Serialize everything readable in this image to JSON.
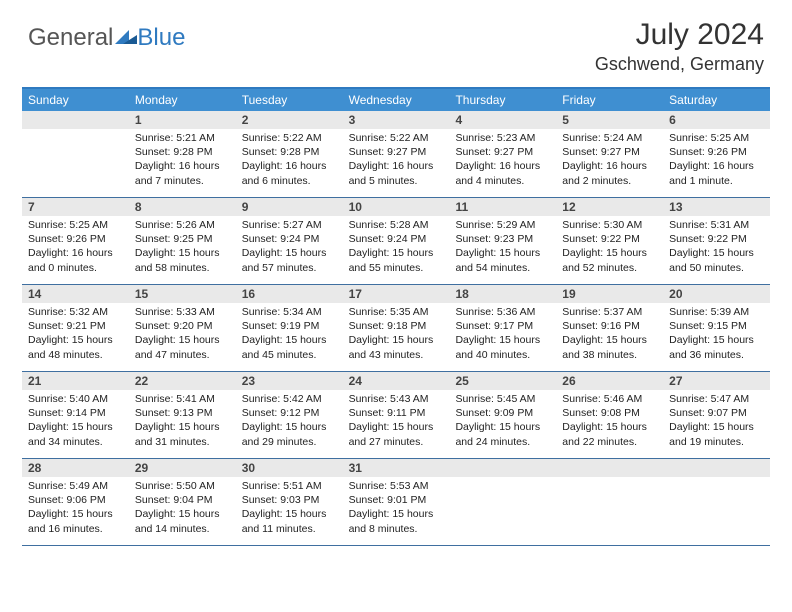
{
  "logo": {
    "part1": "General",
    "part2": "Blue"
  },
  "title": "July 2024",
  "location": "Gschwend, Germany",
  "colors": {
    "headerBlue": "#3f8fd1",
    "borderBlue": "#3f6fa0",
    "grayBar": "#e9e9e9",
    "logoBlue": "#2f7ac0"
  },
  "dayNames": [
    "Sunday",
    "Monday",
    "Tuesday",
    "Wednesday",
    "Thursday",
    "Friday",
    "Saturday"
  ],
  "weeks": [
    [
      {
        "blank": true
      },
      {
        "d": "1",
        "sr": "Sunrise: 5:21 AM",
        "ss": "Sunset: 9:28 PM",
        "dl1": "Daylight: 16 hours",
        "dl2": "and 7 minutes."
      },
      {
        "d": "2",
        "sr": "Sunrise: 5:22 AM",
        "ss": "Sunset: 9:28 PM",
        "dl1": "Daylight: 16 hours",
        "dl2": "and 6 minutes."
      },
      {
        "d": "3",
        "sr": "Sunrise: 5:22 AM",
        "ss": "Sunset: 9:27 PM",
        "dl1": "Daylight: 16 hours",
        "dl2": "and 5 minutes."
      },
      {
        "d": "4",
        "sr": "Sunrise: 5:23 AM",
        "ss": "Sunset: 9:27 PM",
        "dl1": "Daylight: 16 hours",
        "dl2": "and 4 minutes."
      },
      {
        "d": "5",
        "sr": "Sunrise: 5:24 AM",
        "ss": "Sunset: 9:27 PM",
        "dl1": "Daylight: 16 hours",
        "dl2": "and 2 minutes."
      },
      {
        "d": "6",
        "sr": "Sunrise: 5:25 AM",
        "ss": "Sunset: 9:26 PM",
        "dl1": "Daylight: 16 hours",
        "dl2": "and 1 minute."
      }
    ],
    [
      {
        "d": "7",
        "sr": "Sunrise: 5:25 AM",
        "ss": "Sunset: 9:26 PM",
        "dl1": "Daylight: 16 hours",
        "dl2": "and 0 minutes."
      },
      {
        "d": "8",
        "sr": "Sunrise: 5:26 AM",
        "ss": "Sunset: 9:25 PM",
        "dl1": "Daylight: 15 hours",
        "dl2": "and 58 minutes."
      },
      {
        "d": "9",
        "sr": "Sunrise: 5:27 AM",
        "ss": "Sunset: 9:24 PM",
        "dl1": "Daylight: 15 hours",
        "dl2": "and 57 minutes."
      },
      {
        "d": "10",
        "sr": "Sunrise: 5:28 AM",
        "ss": "Sunset: 9:24 PM",
        "dl1": "Daylight: 15 hours",
        "dl2": "and 55 minutes."
      },
      {
        "d": "11",
        "sr": "Sunrise: 5:29 AM",
        "ss": "Sunset: 9:23 PM",
        "dl1": "Daylight: 15 hours",
        "dl2": "and 54 minutes."
      },
      {
        "d": "12",
        "sr": "Sunrise: 5:30 AM",
        "ss": "Sunset: 9:22 PM",
        "dl1": "Daylight: 15 hours",
        "dl2": "and 52 minutes."
      },
      {
        "d": "13",
        "sr": "Sunrise: 5:31 AM",
        "ss": "Sunset: 9:22 PM",
        "dl1": "Daylight: 15 hours",
        "dl2": "and 50 minutes."
      }
    ],
    [
      {
        "d": "14",
        "sr": "Sunrise: 5:32 AM",
        "ss": "Sunset: 9:21 PM",
        "dl1": "Daylight: 15 hours",
        "dl2": "and 48 minutes."
      },
      {
        "d": "15",
        "sr": "Sunrise: 5:33 AM",
        "ss": "Sunset: 9:20 PM",
        "dl1": "Daylight: 15 hours",
        "dl2": "and 47 minutes."
      },
      {
        "d": "16",
        "sr": "Sunrise: 5:34 AM",
        "ss": "Sunset: 9:19 PM",
        "dl1": "Daylight: 15 hours",
        "dl2": "and 45 minutes."
      },
      {
        "d": "17",
        "sr": "Sunrise: 5:35 AM",
        "ss": "Sunset: 9:18 PM",
        "dl1": "Daylight: 15 hours",
        "dl2": "and 43 minutes."
      },
      {
        "d": "18",
        "sr": "Sunrise: 5:36 AM",
        "ss": "Sunset: 9:17 PM",
        "dl1": "Daylight: 15 hours",
        "dl2": "and 40 minutes."
      },
      {
        "d": "19",
        "sr": "Sunrise: 5:37 AM",
        "ss": "Sunset: 9:16 PM",
        "dl1": "Daylight: 15 hours",
        "dl2": "and 38 minutes."
      },
      {
        "d": "20",
        "sr": "Sunrise: 5:39 AM",
        "ss": "Sunset: 9:15 PM",
        "dl1": "Daylight: 15 hours",
        "dl2": "and 36 minutes."
      }
    ],
    [
      {
        "d": "21",
        "sr": "Sunrise: 5:40 AM",
        "ss": "Sunset: 9:14 PM",
        "dl1": "Daylight: 15 hours",
        "dl2": "and 34 minutes."
      },
      {
        "d": "22",
        "sr": "Sunrise: 5:41 AM",
        "ss": "Sunset: 9:13 PM",
        "dl1": "Daylight: 15 hours",
        "dl2": "and 31 minutes."
      },
      {
        "d": "23",
        "sr": "Sunrise: 5:42 AM",
        "ss": "Sunset: 9:12 PM",
        "dl1": "Daylight: 15 hours",
        "dl2": "and 29 minutes."
      },
      {
        "d": "24",
        "sr": "Sunrise: 5:43 AM",
        "ss": "Sunset: 9:11 PM",
        "dl1": "Daylight: 15 hours",
        "dl2": "and 27 minutes."
      },
      {
        "d": "25",
        "sr": "Sunrise: 5:45 AM",
        "ss": "Sunset: 9:09 PM",
        "dl1": "Daylight: 15 hours",
        "dl2": "and 24 minutes."
      },
      {
        "d": "26",
        "sr": "Sunrise: 5:46 AM",
        "ss": "Sunset: 9:08 PM",
        "dl1": "Daylight: 15 hours",
        "dl2": "and 22 minutes."
      },
      {
        "d": "27",
        "sr": "Sunrise: 5:47 AM",
        "ss": "Sunset: 9:07 PM",
        "dl1": "Daylight: 15 hours",
        "dl2": "and 19 minutes."
      }
    ],
    [
      {
        "d": "28",
        "sr": "Sunrise: 5:49 AM",
        "ss": "Sunset: 9:06 PM",
        "dl1": "Daylight: 15 hours",
        "dl2": "and 16 minutes."
      },
      {
        "d": "29",
        "sr": "Sunrise: 5:50 AM",
        "ss": "Sunset: 9:04 PM",
        "dl1": "Daylight: 15 hours",
        "dl2": "and 14 minutes."
      },
      {
        "d": "30",
        "sr": "Sunrise: 5:51 AM",
        "ss": "Sunset: 9:03 PM",
        "dl1": "Daylight: 15 hours",
        "dl2": "and 11 minutes."
      },
      {
        "d": "31",
        "sr": "Sunrise: 5:53 AM",
        "ss": "Sunset: 9:01 PM",
        "dl1": "Daylight: 15 hours",
        "dl2": "and 8 minutes."
      },
      {
        "blank": true
      },
      {
        "blank": true
      },
      {
        "blank": true
      }
    ]
  ]
}
